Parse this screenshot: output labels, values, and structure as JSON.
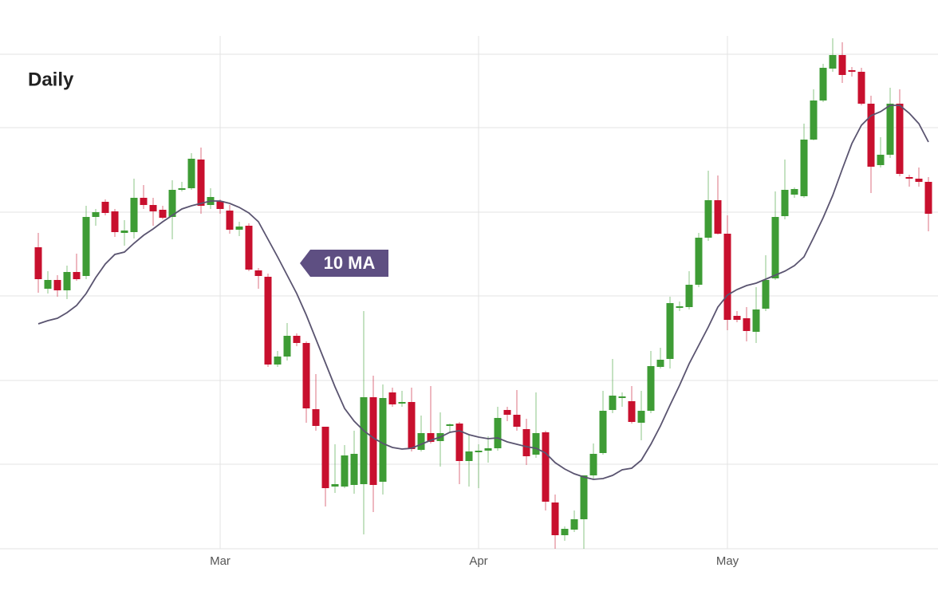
{
  "chart_data": {
    "type": "candlestick",
    "title": "Daily",
    "categories": [
      null,
      null,
      null,
      null,
      null,
      null,
      null,
      null,
      null,
      null,
      null,
      null,
      null,
      null,
      null,
      null,
      null,
      null,
      null,
      "Mar",
      null,
      null,
      null,
      null,
      null,
      null,
      null,
      null,
      null,
      null,
      null,
      null,
      null,
      null,
      null,
      null,
      null,
      null,
      null,
      null,
      null,
      null,
      null,
      null,
      null,
      null,
      "Apr",
      null,
      null,
      null,
      null,
      null,
      null,
      null,
      null,
      null,
      null,
      null,
      null,
      null,
      null,
      null,
      null,
      null,
      null,
      null,
      null,
      null,
      null,
      null,
      null,
      null,
      "May",
      null,
      null,
      null,
      null,
      null,
      null,
      null,
      null,
      null,
      null,
      null,
      null,
      null,
      null,
      null,
      null,
      null,
      null,
      null,
      null,
      null
    ],
    "open": [
      378,
      326,
      337,
      324,
      347,
      342,
      416,
      435,
      423,
      396,
      397,
      440,
      431,
      425,
      416,
      450,
      452,
      488,
      431,
      436,
      424,
      400,
      405,
      349,
      341,
      231,
      241,
      267,
      258,
      175,
      153,
      78,
      78,
      80,
      81,
      190,
      84,
      196,
      182,
      184,
      124,
      145,
      135,
      154,
      157,
      110,
      121,
      123,
      126,
      174,
      168,
      150,
      118,
      146,
      58,
      17,
      24,
      37,
      92,
      120,
      174,
      189,
      185,
      158,
      173,
      228,
      238,
      302,
      303,
      331,
      390,
      437,
      395,
      292,
      289,
      272,
      301,
      339,
      417,
      444,
      442,
      513,
      562,
      602,
      619,
      600,
      598,
      558,
      481,
      494,
      558,
      466,
      464,
      460
    ],
    "high": [
      396,
      348,
      343,
      355,
      370,
      430,
      426,
      438,
      426,
      412,
      464,
      456,
      440,
      430,
      462,
      460,
      496,
      503,
      452,
      438,
      431,
      410,
      408,
      352,
      345,
      248,
      283,
      270,
      260,
      219,
      153,
      131,
      130,
      148,
      298,
      217,
      206,
      202,
      198,
      202,
      167,
      204,
      171,
      157,
      159,
      143,
      131,
      141,
      178,
      178,
      199,
      163,
      196,
      148,
      68,
      28,
      48,
      92,
      132,
      198,
      238,
      196,
      204,
      198,
      248,
      252,
      316,
      310,
      348,
      396,
      474,
      468,
      418,
      298,
      303,
      328,
      368,
      448,
      488,
      453,
      533,
      576,
      608,
      640,
      635,
      604,
      603,
      568,
      516,
      578,
      576,
      469,
      478,
      466
    ],
    "low": [
      321,
      320,
      316,
      313,
      336,
      338,
      405,
      418,
      391,
      380,
      389,
      426,
      405,
      413,
      388,
      448,
      450,
      420,
      426,
      420,
      395,
      392,
      348,
      326,
      228,
      228,
      236,
      254,
      158,
      148,
      53,
      70,
      76,
      69,
      18,
      46,
      68,
      178,
      178,
      122,
      122,
      132,
      103,
      145,
      81,
      78,
      76,
      108,
      123,
      160,
      148,
      105,
      114,
      48,
      0,
      10,
      21,
      0,
      88,
      118,
      170,
      178,
      157,
      136,
      170,
      226,
      226,
      298,
      300,
      328,
      386,
      394,
      274,
      284,
      260,
      258,
      298,
      337,
      413,
      440,
      440,
      512,
      560,
      598,
      584,
      592,
      556,
      446,
      478,
      490,
      467,
      454,
      454,
      398
    ],
    "close": [
      338,
      337,
      324,
      347,
      338,
      416,
      422,
      421,
      397,
      399,
      440,
      431,
      423,
      415,
      450,
      452,
      489,
      430,
      441,
      426,
      400,
      404,
      350,
      342,
      231,
      241,
      267,
      258,
      176,
      154,
      76,
      81,
      117,
      119,
      190,
      80,
      189,
      181,
      184,
      125,
      145,
      134,
      145,
      156,
      110,
      122,
      123,
      126,
      164,
      168,
      153,
      116,
      145,
      59,
      17,
      25,
      37,
      92,
      119,
      173,
      192,
      191,
      159,
      173,
      229,
      237,
      308,
      304,
      331,
      390,
      437,
      395,
      287,
      287,
      273,
      300,
      337,
      416,
      450,
      451,
      513,
      562,
      603,
      619,
      594,
      598,
      558,
      479,
      494,
      558,
      470,
      464,
      460,
      420
    ],
    "up_color": "#3e9c35",
    "down_color": "#c8102e",
    "ma": {
      "name": "10 MA",
      "color": "#5a5470",
      "values": [
        282,
        286,
        289,
        296,
        305,
        320,
        340,
        357,
        369,
        372,
        383,
        393,
        401,
        410,
        418,
        426,
        430,
        433,
        436,
        436,
        433,
        428,
        421,
        410,
        388,
        366,
        343,
        320,
        293,
        263,
        233,
        203,
        176,
        160,
        148,
        139,
        132,
        127,
        125,
        126,
        131,
        136,
        140,
        146,
        148,
        143,
        140,
        138,
        139,
        134,
        131,
        128,
        126,
        120,
        108,
        100,
        94,
        90,
        87,
        88,
        92,
        99,
        101,
        111,
        131,
        154,
        180,
        205,
        232,
        255,
        278,
        303,
        318,
        325,
        330,
        333,
        338,
        343,
        348,
        355,
        366,
        390,
        415,
        443,
        476,
        508,
        531,
        543,
        548,
        556,
        556,
        546,
        533,
        510
      ]
    },
    "ma_label_color": "#5e4f82",
    "ylim": [
      0,
      648
    ],
    "yticks": [
      0,
      106,
      211,
      317,
      422,
      528,
      620
    ],
    "grid": true
  }
}
